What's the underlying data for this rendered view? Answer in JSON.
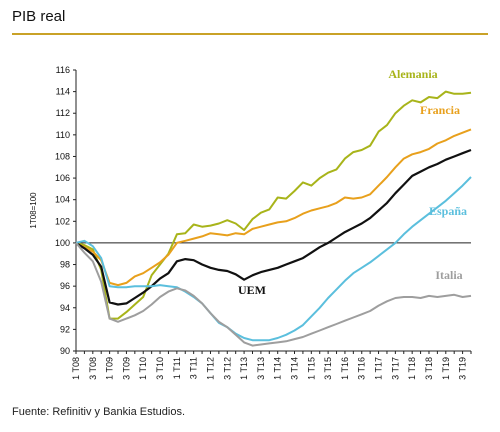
{
  "header": {
    "title": "PIB real"
  },
  "footer": {
    "source": "Fuente: Refinitiv y Bankia Estudios."
  },
  "chart_data": {
    "type": "line",
    "title": "PIB real",
    "xlabel": "",
    "ylabel": "1T08=100",
    "ylim": [
      90,
      116
    ],
    "yticks": [
      90,
      92,
      94,
      96,
      98,
      100,
      102,
      104,
      106,
      108,
      110,
      112,
      114,
      116
    ],
    "grid": false,
    "baseline": 100,
    "x_tick_labels": [
      "1 T08",
      "3 T08",
      "1 T09",
      "3 T09",
      "1 T10",
      "3 T10",
      "1 T11",
      "3 T11",
      "1 T12",
      "3 T12",
      "1 T13",
      "3 T13",
      "1 T14",
      "3 T14",
      "1 T15",
      "3 T15",
      "1 T16",
      "3 T16",
      "1 T17",
      "3 T17",
      "1 T18",
      "3 T18",
      "1 T19",
      "3 T19"
    ],
    "x": [
      "1T08",
      "2T08",
      "3T08",
      "4T08",
      "1T09",
      "2T09",
      "3T09",
      "4T09",
      "1T10",
      "2T10",
      "3T10",
      "4T10",
      "1T11",
      "2T11",
      "3T11",
      "4T11",
      "1T12",
      "2T12",
      "3T12",
      "4T12",
      "1T13",
      "2T13",
      "3T13",
      "4T13",
      "1T14",
      "2T14",
      "3T14",
      "4T14",
      "1T15",
      "2T15",
      "3T15",
      "4T15",
      "1T16",
      "2T16",
      "3T16",
      "4T16",
      "1T17",
      "2T17",
      "3T17",
      "4T17",
      "1T18",
      "2T18",
      "3T18",
      "4T18",
      "1T19",
      "2T19",
      "3T19",
      "4T19"
    ],
    "series": [
      {
        "name": "Alemania",
        "color": "#a8b41a",
        "values": [
          100,
          99.8,
          99.4,
          97.5,
          93.0,
          93.0,
          93.6,
          94.3,
          95.0,
          97.0,
          98.0,
          99.0,
          100.8,
          100.9,
          101.7,
          101.5,
          101.6,
          101.8,
          102.1,
          101.8,
          101.2,
          102.2,
          102.8,
          103.1,
          104.2,
          104.1,
          104.8,
          105.6,
          105.3,
          106.0,
          106.5,
          106.8,
          107.8,
          108.4,
          108.6,
          109.0,
          110.3,
          110.9,
          112.0,
          112.7,
          113.2,
          113.0,
          113.5,
          113.4,
          114.0,
          113.8,
          113.8,
          113.9
        ]
      },
      {
        "name": "Francia",
        "color": "#e8a01c",
        "values": [
          100,
          99.6,
          99.2,
          98.4,
          96.3,
          96.1,
          96.3,
          96.9,
          97.2,
          97.7,
          98.2,
          98.9,
          100.0,
          100.2,
          100.4,
          100.6,
          100.9,
          100.8,
          100.7,
          100.9,
          100.8,
          101.3,
          101.5,
          101.7,
          101.9,
          102.0,
          102.3,
          102.7,
          103.0,
          103.2,
          103.4,
          103.7,
          104.2,
          104.1,
          104.2,
          104.5,
          105.3,
          106.1,
          107.0,
          107.8,
          108.2,
          108.4,
          108.7,
          109.2,
          109.5,
          109.9,
          110.2,
          110.5
        ]
      },
      {
        "name": "UEM",
        "color": "#111111",
        "values": [
          100,
          99.5,
          98.9,
          97.8,
          94.5,
          94.3,
          94.4,
          94.9,
          95.4,
          96.0,
          96.7,
          97.2,
          98.3,
          98.5,
          98.4,
          98.0,
          97.7,
          97.5,
          97.4,
          97.1,
          96.6,
          97.0,
          97.3,
          97.5,
          97.7,
          98.0,
          98.3,
          98.6,
          99.1,
          99.6,
          100.0,
          100.5,
          101.0,
          101.4,
          101.8,
          102.3,
          103.0,
          103.7,
          104.6,
          105.4,
          106.2,
          106.6,
          107.0,
          107.3,
          107.7,
          108.0,
          108.3,
          108.6
        ]
      },
      {
        "name": "España",
        "color": "#5bbfdd",
        "values": [
          100,
          100.2,
          99.7,
          98.6,
          96.0,
          95.9,
          95.9,
          96.0,
          96.0,
          96.0,
          96.1,
          96.0,
          95.9,
          95.5,
          95.0,
          94.4,
          93.5,
          92.6,
          92.2,
          91.6,
          91.2,
          91.0,
          91.0,
          91.0,
          91.2,
          91.5,
          91.9,
          92.4,
          93.2,
          94.0,
          94.9,
          95.7,
          96.5,
          97.2,
          97.7,
          98.2,
          98.8,
          99.4,
          100.0,
          100.8,
          101.5,
          102.1,
          102.7,
          103.3,
          103.9,
          104.6,
          105.3,
          106.1
        ]
      },
      {
        "name": "Italia",
        "color": "#9e9e9e",
        "values": [
          100,
          99.1,
          98.3,
          96.4,
          93.0,
          92.7,
          93.0,
          93.3,
          93.7,
          94.3,
          95.0,
          95.5,
          95.8,
          95.6,
          95.1,
          94.4,
          93.5,
          92.7,
          92.2,
          91.5,
          90.8,
          90.5,
          90.6,
          90.7,
          90.8,
          90.9,
          91.1,
          91.3,
          91.6,
          91.9,
          92.2,
          92.5,
          92.8,
          93.1,
          93.4,
          93.7,
          94.2,
          94.6,
          94.9,
          95.0,
          95.0,
          94.9,
          95.1,
          95.0,
          95.1,
          95.2,
          95.0,
          95.1
        ]
      }
    ]
  }
}
